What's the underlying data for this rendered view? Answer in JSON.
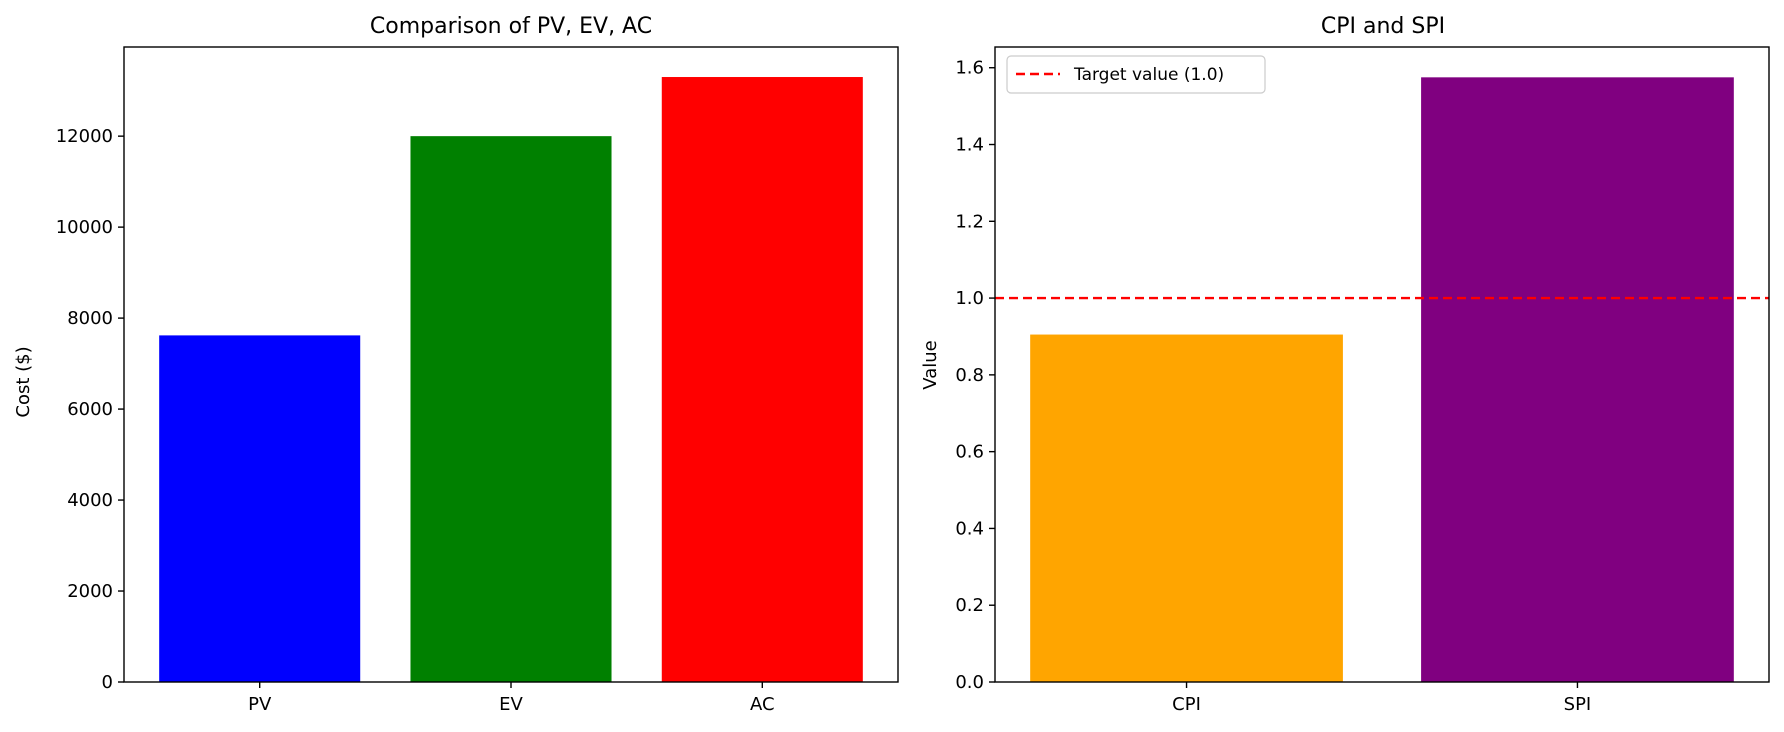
{
  "chart_data": [
    {
      "type": "bar",
      "title": "Comparison of PV, EV, AC",
      "xlabel": "",
      "ylabel": "Cost ($)",
      "categories": [
        "PV",
        "EV",
        "AC"
      ],
      "values": [
        7620,
        12000,
        13300
      ],
      "colors": [
        "#0000ff",
        "#008000",
        "#ff0000"
      ],
      "ylim": [
        0,
        13960
      ],
      "yticks": [
        0,
        2000,
        4000,
        6000,
        8000,
        10000,
        12000
      ],
      "grid": false
    },
    {
      "type": "bar",
      "title": "CPI and SPI",
      "xlabel": "",
      "ylabel": "Value",
      "categories": [
        "CPI",
        "SPI"
      ],
      "values": [
        0.905,
        1.575
      ],
      "colors": [
        "#ffa500",
        "#800080"
      ],
      "ylim": [
        0,
        1.654
      ],
      "yticks": [
        0.0,
        0.2,
        0.4,
        0.6,
        0.8,
        1.0,
        1.2,
        1.4,
        1.6
      ],
      "reference_line": {
        "y": 1.0,
        "label": "Target value (1.0)",
        "color": "#ff0000",
        "style": "dashed"
      },
      "legend": {
        "placement": "top-left",
        "entries": [
          "Target value (1.0)"
        ]
      },
      "grid": false
    }
  ]
}
